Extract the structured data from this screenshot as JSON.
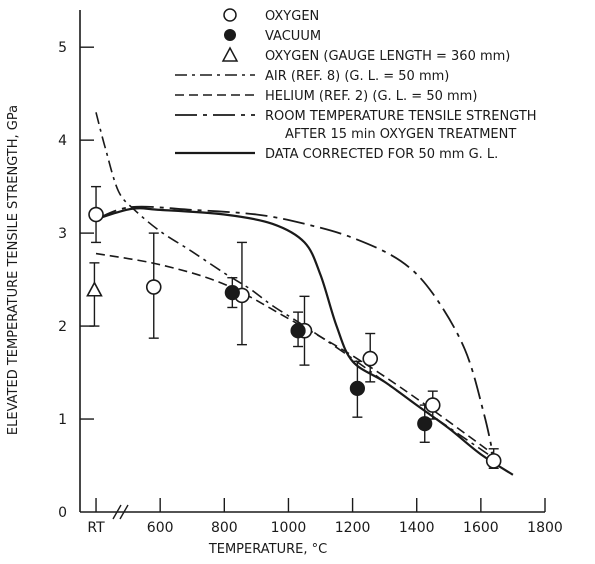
{
  "chart_data": {
    "type": "line",
    "xlabel": "TEMPERATURE, °C",
    "ylabel": "ELEVATED TEMPERATURE TENSILE STRENGTH, GPa",
    "xlim": [
      350,
      1800
    ],
    "ylim": [
      0,
      5.4
    ],
    "x_ticks": [
      {
        "value": 400,
        "label": "RT"
      },
      {
        "value": 600,
        "label": "600"
      },
      {
        "value": 800,
        "label": "800"
      },
      {
        "value": 1000,
        "label": "1000"
      },
      {
        "value": 1200,
        "label": "1200"
      },
      {
        "value": 1400,
        "label": "1400"
      },
      {
        "value": 1600,
        "label": "1600"
      },
      {
        "value": 1800,
        "label": "1800"
      }
    ],
    "y_ticks": [
      0,
      1,
      2,
      3,
      4,
      5
    ],
    "axis_break": "x",
    "legend": [
      {
        "marker": "open-circle",
        "label": "OXYGEN"
      },
      {
        "marker": "filled-circle",
        "label": "VACUUM"
      },
      {
        "marker": "open-triangle",
        "label": "OXYGEN (GAUGE LENGTH = 360 mm)"
      },
      {
        "line": "dash-dot",
        "label": "AIR (REF. 8) (G. L. = 50 mm)"
      },
      {
        "line": "dashed",
        "label": "HELIUM (REF. 2) (G. L. = 50 mm)"
      },
      {
        "line": "long-dash-dot",
        "label": "ROOM TEMPERATURE TENSILE STRENGTH",
        "label2": "AFTER 15 min OXYGEN TREATMENT"
      },
      {
        "line": "solid",
        "label": "DATA CORRECTED FOR 50 mm G. L."
      }
    ],
    "points": {
      "oxygen": [
        {
          "x": 400,
          "y": 3.2,
          "lo": 2.9,
          "hi": 3.5
        },
        {
          "x": 580,
          "y": 2.42,
          "lo": 1.87,
          "hi": 3.0
        },
        {
          "x": 855,
          "y": 2.33,
          "lo": 1.8,
          "hi": 2.9
        },
        {
          "x": 1050,
          "y": 1.95,
          "lo": 1.58,
          "hi": 2.32
        },
        {
          "x": 1255,
          "y": 1.65,
          "lo": 1.4,
          "hi": 1.92
        },
        {
          "x": 1450,
          "y": 1.15,
          "lo": 1.0,
          "hi": 1.3
        },
        {
          "x": 1640,
          "y": 0.55,
          "lo": 0.47,
          "hi": 0.68
        }
      ],
      "vacuum": [
        {
          "x": 825,
          "y": 2.36,
          "lo": 2.2,
          "hi": 2.52
        },
        {
          "x": 1030,
          "y": 1.95,
          "lo": 1.78,
          "hi": 2.15
        },
        {
          "x": 1215,
          "y": 1.33,
          "lo": 1.02,
          "hi": 1.62
        },
        {
          "x": 1425,
          "y": 0.95,
          "lo": 0.75,
          "hi": 1.15
        }
      ],
      "oxygen_gl360": [
        {
          "x": 395,
          "y": 2.38,
          "lo": 2.0,
          "hi": 2.68
        }
      ]
    },
    "series": [
      {
        "style": "dash-dot",
        "x": [
          400,
          430,
          470,
          520,
          600,
          700,
          800,
          880,
          950,
          1050,
          1200,
          1400,
          1640
        ],
        "y": [
          4.3,
          3.9,
          3.45,
          3.25,
          3.02,
          2.8,
          2.57,
          2.4,
          2.22,
          2.0,
          1.65,
          1.15,
          0.58
        ]
      },
      {
        "style": "dashed",
        "x": [
          400,
          600,
          800,
          1000,
          1200,
          1400,
          1640
        ],
        "y": [
          2.78,
          2.66,
          2.45,
          2.08,
          1.68,
          1.22,
          0.62
        ]
      },
      {
        "style": "long-dash-dot",
        "x": [
          400,
          510,
          700,
          900,
          1050,
          1200,
          1350,
          1450,
          1550,
          1610,
          1640
        ],
        "y": [
          3.15,
          3.28,
          3.25,
          3.2,
          3.1,
          2.95,
          2.7,
          2.35,
          1.75,
          1.05,
          0.58
        ]
      },
      {
        "style": "solid",
        "x": [
          400,
          510,
          600,
          800,
          950,
          1050,
          1100,
          1150,
          1200,
          1300,
          1400,
          1500,
          1600,
          1700
        ],
        "y": [
          3.15,
          3.26,
          3.25,
          3.2,
          3.1,
          2.9,
          2.55,
          2.0,
          1.62,
          1.4,
          1.15,
          0.9,
          0.62,
          0.4
        ]
      }
    ]
  }
}
